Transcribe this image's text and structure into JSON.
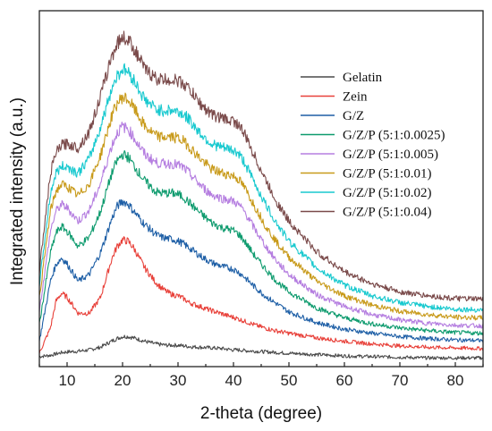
{
  "chart_data": {
    "type": "line",
    "title": "",
    "xlabel": "2-theta (degree)",
    "ylabel": "Integrated intensity (a.u.)",
    "xlim": [
      5,
      85
    ],
    "xticks": [
      10,
      20,
      30,
      40,
      50,
      60,
      70,
      80
    ],
    "grid": false,
    "y_tick_labels": false,
    "legend_position": "top-right",
    "x": [
      5,
      7,
      8,
      9,
      10,
      12,
      14,
      16,
      18,
      19,
      20,
      21,
      22,
      24,
      26,
      27,
      28,
      29,
      30,
      31,
      32,
      34,
      36,
      38,
      39,
      40,
      41,
      42,
      44,
      46,
      48,
      50,
      55,
      60,
      65,
      70,
      75,
      80,
      85
    ],
    "series": [
      {
        "name": "Gelatin",
        "color": "#4a4a4a",
        "values": [
          0.07,
          0.09,
          0.11,
          0.13,
          0.14,
          0.15,
          0.17,
          0.21,
          0.3,
          0.34,
          0.37,
          0.37,
          0.35,
          0.3,
          0.26,
          0.25,
          0.24,
          0.24,
          0.24,
          0.23,
          0.22,
          0.21,
          0.2,
          0.19,
          0.18,
          0.17,
          0.17,
          0.16,
          0.15,
          0.14,
          0.13,
          0.12,
          0.1,
          0.08,
          0.07,
          0.06,
          0.05,
          0.05,
          0.05
        ]
      },
      {
        "name": "Zein",
        "color": "#e8413a",
        "values": [
          0.12,
          0.5,
          0.9,
          1.02,
          0.96,
          0.72,
          0.72,
          0.95,
          1.52,
          1.72,
          1.82,
          1.8,
          1.7,
          1.4,
          1.18,
          1.1,
          1.04,
          1.0,
          0.98,
          0.94,
          0.88,
          0.82,
          0.76,
          0.71,
          0.68,
          0.66,
          0.63,
          0.6,
          0.54,
          0.49,
          0.45,
          0.42,
          0.35,
          0.3,
          0.26,
          0.23,
          0.21,
          0.2,
          0.19
        ]
      },
      {
        "name": "G/Z",
        "color": "#1e5fa6",
        "values": [
          0.3,
          1.2,
          1.45,
          1.55,
          1.46,
          1.2,
          1.3,
          1.62,
          2.12,
          2.32,
          2.4,
          2.36,
          2.25,
          2.05,
          1.9,
          1.86,
          1.84,
          1.83,
          1.8,
          1.76,
          1.7,
          1.58,
          1.48,
          1.42,
          1.4,
          1.38,
          1.33,
          1.26,
          1.1,
          0.96,
          0.85,
          0.74,
          0.58,
          0.48,
          0.42,
          0.37,
          0.34,
          0.32,
          0.31
        ]
      },
      {
        "name": "G/Z/P (5:1:0.0025)",
        "color": "#0e9b6e",
        "values": [
          0.55,
          1.62,
          1.92,
          2.02,
          1.95,
          1.72,
          1.86,
          2.24,
          2.8,
          3.0,
          3.1,
          3.06,
          2.94,
          2.7,
          2.54,
          2.52,
          2.52,
          2.52,
          2.5,
          2.46,
          2.38,
          2.22,
          2.08,
          2.0,
          1.98,
          1.96,
          1.9,
          1.8,
          1.56,
          1.36,
          1.18,
          1.04,
          0.8,
          0.65,
          0.56,
          0.5,
          0.46,
          0.43,
          0.42
        ]
      },
      {
        "name": "G/Z/P (5:1:0.005)",
        "color": "#b57ee0",
        "values": [
          0.75,
          1.95,
          2.25,
          2.35,
          2.3,
          2.1,
          2.26,
          2.66,
          3.22,
          3.42,
          3.52,
          3.48,
          3.36,
          3.1,
          2.98,
          2.96,
          2.96,
          2.96,
          2.94,
          2.9,
          2.82,
          2.64,
          2.5,
          2.44,
          2.42,
          2.4,
          2.34,
          2.24,
          1.96,
          1.7,
          1.48,
          1.3,
          1.0,
          0.82,
          0.7,
          0.62,
          0.57,
          0.54,
          0.53
        ]
      },
      {
        "name": "G/Z/P (5:1:0.01)",
        "color": "#c89a1a",
        "values": [
          0.95,
          2.25,
          2.55,
          2.65,
          2.62,
          2.48,
          2.66,
          3.08,
          3.66,
          3.86,
          3.96,
          3.92,
          3.8,
          3.52,
          3.38,
          3.36,
          3.36,
          3.36,
          3.34,
          3.3,
          3.22,
          3.04,
          2.88,
          2.82,
          2.8,
          2.78,
          2.72,
          2.6,
          2.3,
          2.0,
          1.76,
          1.56,
          1.2,
          0.98,
          0.84,
          0.75,
          0.7,
          0.66,
          0.65
        ]
      },
      {
        "name": "G/Z/P (5:1:0.02)",
        "color": "#18c9cf",
        "values": [
          1.15,
          2.52,
          2.82,
          2.92,
          2.92,
          2.82,
          3.04,
          3.5,
          4.08,
          4.28,
          4.38,
          4.34,
          4.22,
          3.92,
          3.78,
          3.76,
          3.76,
          3.76,
          3.74,
          3.7,
          3.62,
          3.42,
          3.26,
          3.2,
          3.18,
          3.16,
          3.1,
          2.98,
          2.64,
          2.32,
          2.04,
          1.8,
          1.4,
          1.14,
          0.98,
          0.88,
          0.82,
          0.78,
          0.77
        ]
      },
      {
        "name": "G/Z/P (5:1:0.04)",
        "color": "#7a4a4a",
        "values": [
          1.35,
          2.82,
          3.12,
          3.24,
          3.26,
          3.2,
          3.44,
          3.96,
          4.56,
          4.76,
          4.86,
          4.82,
          4.7,
          4.38,
          4.24,
          4.22,
          4.22,
          4.22,
          4.2,
          4.16,
          4.08,
          3.86,
          3.7,
          3.64,
          3.62,
          3.6,
          3.54,
          3.4,
          3.04,
          2.68,
          2.36,
          2.1,
          1.64,
          1.34,
          1.16,
          1.04,
          0.98,
          0.94,
          0.93
        ]
      }
    ]
  }
}
